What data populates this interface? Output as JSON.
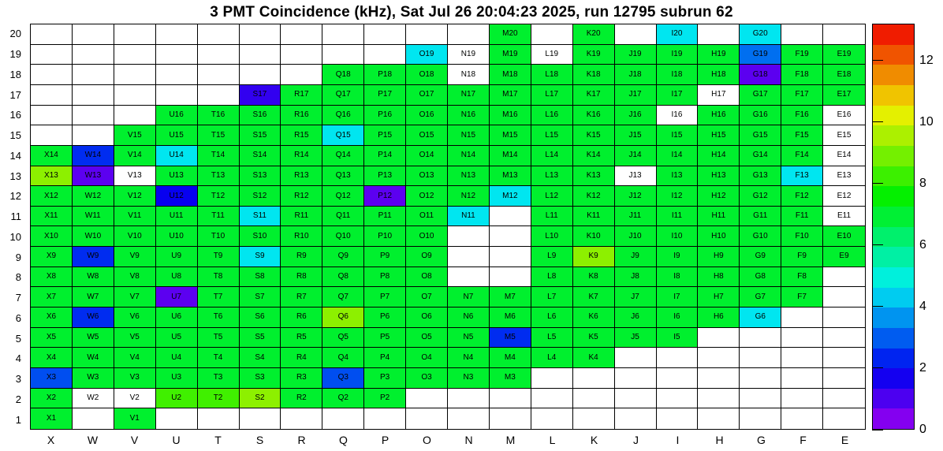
{
  "chart_data": {
    "type": "heatmap",
    "title": "3 PMT Coincidence (kHz), Sat Jul 26 20:04:23 2025, run 12795 subrun 62",
    "unit": "kHz",
    "columns": [
      "X",
      "W",
      "V",
      "U",
      "T",
      "S",
      "R",
      "Q",
      "P",
      "O",
      "N",
      "M",
      "L",
      "K",
      "J",
      "I",
      "H",
      "G",
      "F",
      "E"
    ],
    "rows": [
      1,
      2,
      3,
      4,
      5,
      6,
      7,
      8,
      9,
      10,
      11,
      12,
      13,
      14,
      15,
      16,
      17,
      18,
      19,
      20
    ],
    "colorbar": {
      "min": 0,
      "max": 13.2,
      "ticks": [
        0,
        2,
        4,
        6,
        8,
        10,
        12
      ],
      "palette": "rainbow"
    },
    "masked_marker": "w",
    "grid": {
      "20": {
        "M": 7,
        "K": 7,
        "I": 4.6,
        "G": 4.6
      },
      "19": {
        "O": 4.6,
        "N": "w",
        "M": 7,
        "L": "w",
        "K": 7,
        "J": 7,
        "I": 7,
        "H": 7,
        "G": 3.2,
        "F": 7,
        "E": 7
      },
      "18": {
        "Q": 7,
        "P": 7,
        "O": 7,
        "N": "w",
        "M": 7,
        "L": 7,
        "K": 7,
        "J": 7,
        "I": 7,
        "H": 7,
        "G": 0.8,
        "F": 7,
        "E": 7
      },
      "17": {
        "S": 1.3,
        "R": 7,
        "Q": 7,
        "P": 7,
        "O": 7,
        "N": 7,
        "M": 7,
        "L": 7,
        "K": 7,
        "J": 7,
        "I": 7,
        "H": "w",
        "G": 7,
        "F": 7,
        "E": 7
      },
      "16": {
        "U": 7,
        "T": 7,
        "S": 7,
        "R": 7,
        "Q": 7,
        "P": 7,
        "O": 7,
        "N": 7,
        "M": 7,
        "L": 7,
        "K": 7,
        "J": 7,
        "I": "w",
        "H": 7,
        "G": 7,
        "F": 7,
        "E": "w"
      },
      "15": {
        "V": 7,
        "U": 7,
        "T": 7,
        "S": 7,
        "R": 7,
        "Q": 4.6,
        "P": 7,
        "O": 7,
        "N": 7,
        "M": 7,
        "L": 7,
        "K": 7,
        "J": 7,
        "I": 7,
        "H": 7,
        "G": 7,
        "F": 7,
        "E": "w"
      },
      "14": {
        "X": 7,
        "W": 2.4,
        "V": 7,
        "U": 4.6,
        "T": 7,
        "S": 7,
        "R": 7,
        "Q": 7,
        "P": 7,
        "O": 7,
        "N": 7,
        "M": 7,
        "L": 7,
        "K": 7,
        "J": 7,
        "I": 7,
        "H": 7,
        "G": 7,
        "F": 7,
        "E": "w"
      },
      "13": {
        "X": 9.2,
        "W": 0.8,
        "V": "w",
        "U": 7,
        "T": 7,
        "S": 7,
        "R": 7,
        "Q": 7,
        "P": 7,
        "O": 7,
        "N": 7,
        "M": 7,
        "L": 7,
        "K": 7,
        "J": "w",
        "I": 7,
        "H": 7,
        "G": 7,
        "F": 4.6,
        "E": "w"
      },
      "12": {
        "X": 7,
        "W": 7,
        "V": 7,
        "U": 1.8,
        "T": 7,
        "S": 7,
        "R": 7,
        "Q": 7,
        "P": 0.8,
        "O": 7,
        "N": 7,
        "M": 4.6,
        "L": 7,
        "K": 7,
        "J": 7,
        "I": 7,
        "H": 7,
        "G": 7,
        "F": 7,
        "E": "w"
      },
      "11": {
        "X": 7,
        "W": 7,
        "V": 7,
        "U": 7,
        "T": 7,
        "S": 4.6,
        "R": 7,
        "Q": 7,
        "P": 7,
        "O": 7,
        "N": 4.6,
        "L": 7,
        "K": 7,
        "J": 7,
        "I": 7,
        "H": 7,
        "G": 7,
        "F": 7,
        "E": "w"
      },
      "10": {
        "X": 7,
        "W": 7,
        "V": 7,
        "U": 7,
        "T": 7,
        "S": 7,
        "R": 7,
        "Q": 7,
        "P": 7,
        "O": 7,
        "L": 7,
        "K": 7,
        "J": 7,
        "I": 7,
        "H": 7,
        "G": 7,
        "F": 7,
        "E": 7
      },
      "9": {
        "X": 7,
        "W": 2.4,
        "V": 7,
        "U": 7,
        "T": 7,
        "S": 4.6,
        "R": 7,
        "Q": 7,
        "P": 7,
        "O": 7,
        "L": 7,
        "K": 9.2,
        "J": 7,
        "I": 7,
        "H": 7,
        "G": 7,
        "F": 7,
        "E": 7
      },
      "8": {
        "X": 7,
        "W": 7,
        "V": 7,
        "U": 7,
        "T": 7,
        "S": 7,
        "R": 7,
        "Q": 7,
        "P": 7,
        "O": 7,
        "L": 7,
        "K": 7,
        "J": 7,
        "I": 7,
        "H": 7,
        "G": 7,
        "F": 7
      },
      "7": {
        "X": 7,
        "W": 7,
        "V": 7,
        "U": 0.8,
        "T": 7,
        "S": 7,
        "R": 7,
        "Q": 7,
        "P": 7,
        "O": 7,
        "N": 7,
        "M": 7,
        "L": 7,
        "K": 7,
        "J": 7,
        "I": 7,
        "H": 7,
        "G": 7,
        "F": 7
      },
      "6": {
        "X": 7,
        "W": 2.4,
        "V": 7,
        "U": 7,
        "T": 7,
        "S": 7,
        "R": 7,
        "Q": 9.2,
        "P": 7,
        "O": 7,
        "N": 7,
        "M": 7,
        "L": 7,
        "K": 7,
        "J": 7,
        "I": 7,
        "H": 7,
        "G": 4.6
      },
      "5": {
        "X": 7,
        "W": 7,
        "V": 7,
        "U": 7,
        "T": 7,
        "S": 7,
        "R": 7,
        "Q": 7,
        "P": 7,
        "O": 7,
        "N": 7,
        "M": 2.4,
        "L": 7,
        "K": 7,
        "J": 7,
        "I": 7
      },
      "4": {
        "X": 7,
        "W": 7,
        "V": 7,
        "U": 7,
        "T": 7,
        "S": 7,
        "R": 7,
        "Q": 7,
        "P": 7,
        "O": 7,
        "N": 7,
        "M": 7,
        "L": 7,
        "K": 7
      },
      "3": {
        "X": 2.8,
        "W": 7,
        "V": 7,
        "U": 7,
        "T": 7,
        "S": 7,
        "R": 7,
        "Q": 2.8,
        "P": 7,
        "O": 7,
        "N": 7,
        "M": 7
      },
      "2": {
        "X": 7,
        "W": "w",
        "V": "w",
        "U": 8.3,
        "T": 8.3,
        "S": 9.2,
        "R": 7,
        "Q": 7,
        "P": 7
      },
      "1": {
        "X": 7,
        "V": 7
      }
    }
  }
}
